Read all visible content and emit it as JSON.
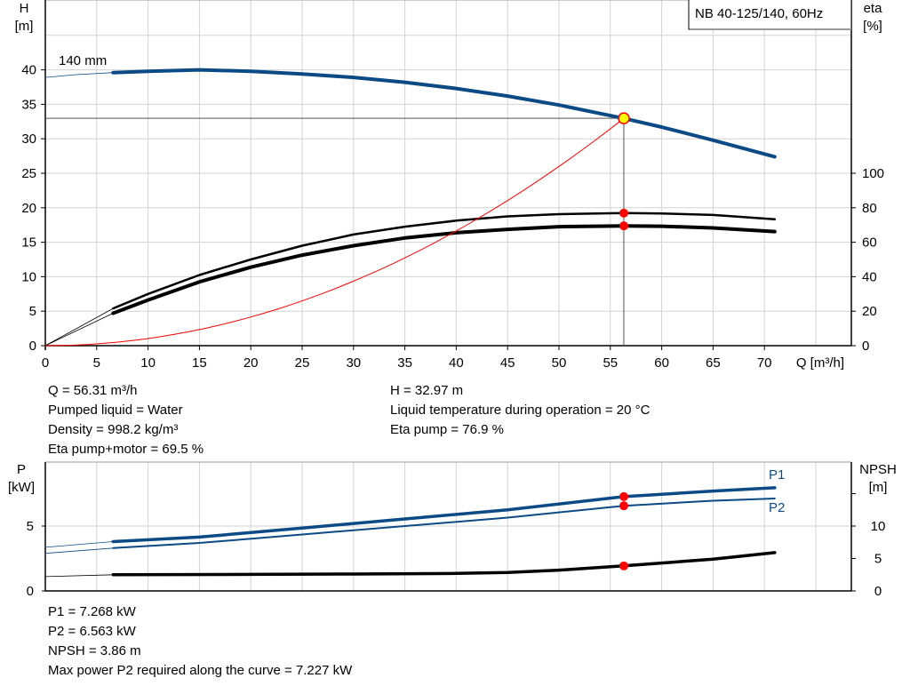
{
  "chart_data": [
    {
      "type": "line",
      "title": "NB 40-125/140, 60Hz",
      "xlabel": "Q [m³/h]",
      "ylabel_left": "H\n[m]",
      "ylabel_right": "eta\n[%]",
      "xlim": [
        0,
        78
      ],
      "ylim_left": [
        0,
        50
      ],
      "ylim_right": [
        0,
        200
      ],
      "grid": true,
      "x_ticks": [
        0,
        5,
        10,
        15,
        20,
        25,
        30,
        35,
        40,
        45,
        50,
        55,
        60,
        65,
        70
      ],
      "y_ticks_left": [
        0,
        5,
        10,
        15,
        20,
        25,
        30,
        35,
        40
      ],
      "y_ticks_right": [
        0,
        20,
        40,
        60,
        80,
        100
      ],
      "curve_label": "140 mm",
      "series": [
        {
          "key": "head",
          "axis": "left",
          "color": "#0b4a84",
          "extrapolated": {
            "x": [
              0,
              3,
              6.6
            ],
            "y": [
              38.9,
              39.3,
              39.6
            ]
          },
          "x": [
            6.6,
            10,
            15,
            20,
            25,
            30,
            35,
            40,
            45,
            50,
            56.31,
            60,
            65,
            71
          ],
          "y": [
            39.6,
            39.8,
            40.0,
            39.8,
            39.4,
            38.9,
            38.2,
            37.3,
            36.2,
            34.9,
            32.97,
            31.7,
            29.8,
            27.4
          ]
        },
        {
          "key": "eta_pump",
          "axis": "right",
          "color": "#000000",
          "extrapolated": {
            "x": [
              0,
              6.6
            ],
            "y": [
              0,
              21.6
            ]
          },
          "x": [
            6.6,
            10,
            15,
            20,
            25,
            30,
            35,
            40,
            45,
            50,
            56.31,
            60,
            65,
            71
          ],
          "y": [
            21.6,
            30,
            41,
            50,
            58,
            64.5,
            69,
            72.5,
            75,
            76.3,
            76.9,
            76.7,
            75.8,
            73.3
          ]
        },
        {
          "key": "eta_pump_motor",
          "axis": "right",
          "color": "#000000",
          "extrapolated": {
            "x": [
              0,
              6.6
            ],
            "y": [
              0,
              18.8
            ]
          },
          "x": [
            6.6,
            10,
            15,
            20,
            25,
            30,
            35,
            40,
            45,
            50,
            56.31,
            60,
            65,
            71
          ],
          "y": [
            18.8,
            26.5,
            37,
            45.5,
            52.5,
            58,
            62.5,
            65.5,
            67.5,
            69,
            69.5,
            69.3,
            68.3,
            66.2
          ]
        },
        {
          "key": "system_curve",
          "axis": "left",
          "color": "#ff0000",
          "quadratic_through": [
            56.31,
            32.97
          ]
        }
      ],
      "duty_point": {
        "Q": 56.31,
        "H": 32.97,
        "eta_pump": 76.9,
        "eta_pump_motor": 69.5
      }
    },
    {
      "type": "line",
      "xlim": [
        0,
        78
      ],
      "ylabel_left": "P\n[kW]",
      "ylabel_right": "NPSH\n[m]",
      "ylim_left": [
        0,
        9.9
      ],
      "ylim_right": [
        0,
        19.8
      ],
      "grid": true,
      "y_ticks_left": [
        0,
        5
      ],
      "y_ticks_right": [
        0,
        5,
        10,
        15
      ],
      "y_tick_labels_right": [
        "0",
        "5",
        "10",
        ""
      ],
      "series": [
        {
          "name": "P1",
          "axis": "left",
          "color": "#0b4a84",
          "extrapolated": {
            "x": [
              0,
              6.6
            ],
            "y": [
              3.36,
              3.8
            ]
          },
          "x": [
            6.6,
            15,
            25,
            35,
            45,
            56.31,
            65,
            71
          ],
          "y": [
            3.8,
            4.15,
            4.85,
            5.55,
            6.25,
            7.268,
            7.7,
            7.95
          ]
        },
        {
          "name": "P2",
          "axis": "left",
          "color": "#0b4a84",
          "extrapolated": {
            "x": [
              0,
              6.6
            ],
            "y": [
              2.9,
              3.3
            ]
          },
          "x": [
            6.6,
            15,
            25,
            35,
            45,
            56.31,
            65,
            71
          ],
          "y": [
            3.3,
            3.7,
            4.35,
            5.0,
            5.65,
            6.563,
            6.95,
            7.12
          ]
        },
        {
          "key": "npsh",
          "axis": "right",
          "color": "#000000",
          "extrapolated": {
            "x": [
              0,
              6.6
            ],
            "y": [
              2.2,
              2.5
            ]
          },
          "x": [
            6.6,
            20,
            30,
            40,
            45,
            50,
            56.31,
            60,
            65,
            71
          ],
          "y": [
            2.5,
            2.55,
            2.6,
            2.7,
            2.85,
            3.2,
            3.86,
            4.3,
            4.9,
            5.9
          ]
        }
      ],
      "duty_point": {
        "Q": 56.31,
        "P1": 7.268,
        "P2": 6.563,
        "NPSH": 3.86
      }
    }
  ],
  "info_top": {
    "left": [
      "Q = 56.31 m³/h",
      "Pumped liquid = Water",
      "Density = 998.2 kg/m³",
      "Eta pump+motor = 69.5 %"
    ],
    "right": [
      "H = 32.97 m",
      "Liquid temperature during operation = 20 °C",
      "Eta pump = 76.9 %"
    ]
  },
  "info_bottom": [
    "P1 = 7.268 kW",
    "P2 = 6.563 kW",
    "NPSH = 3.86 m",
    "Max power P2 required along the curve = 7.227 kW"
  ],
  "colors": {
    "head": "#0b4a84",
    "system": "#ff0000",
    "duty_point_fill": "#ffff00",
    "marker": "#ff0000",
    "grid": "#d3d3d3"
  }
}
